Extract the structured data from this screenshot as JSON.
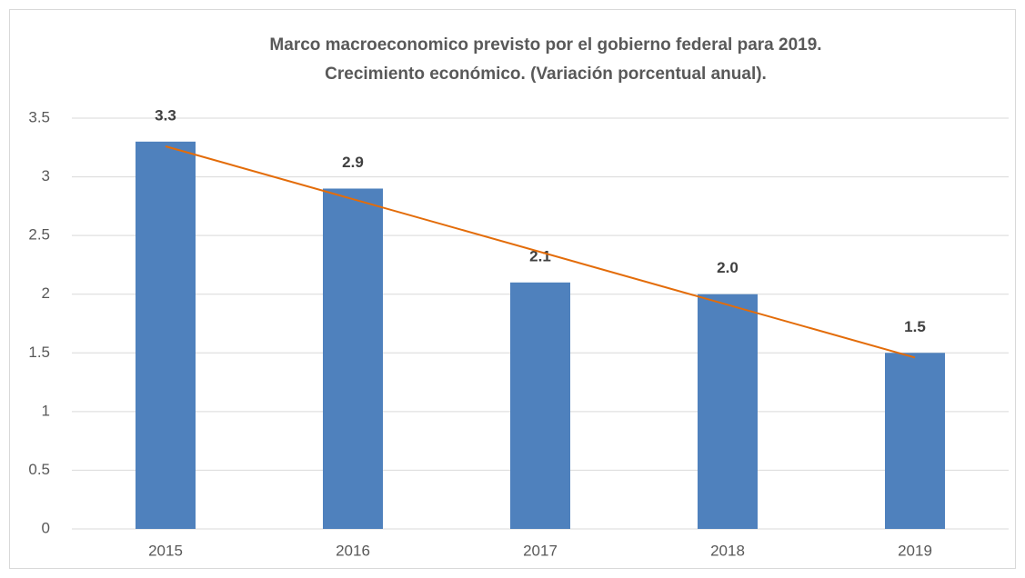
{
  "chart_data": {
    "type": "bar",
    "title": [
      "Marco macroeconomico previsto por el gobierno federal para 2019.",
      "Crecimiento económico.   (Variación porcentual anual)."
    ],
    "categories": [
      "2015",
      "2016",
      "2017",
      "2018",
      "2019"
    ],
    "values": [
      3.3,
      2.9,
      2.1,
      2.0,
      1.5
    ],
    "value_labels": [
      "3.3",
      "2.9",
      "2.1",
      "2.0",
      "1.5"
    ],
    "color": "#4f81bd",
    "trendline": "linear",
    "trendline_color": "#e36c09",
    "ylim": [
      0,
      3.5
    ],
    "yticks": [
      0,
      0.5,
      1,
      1.5,
      2,
      2.5,
      3,
      3.5
    ],
    "grid": true
  }
}
